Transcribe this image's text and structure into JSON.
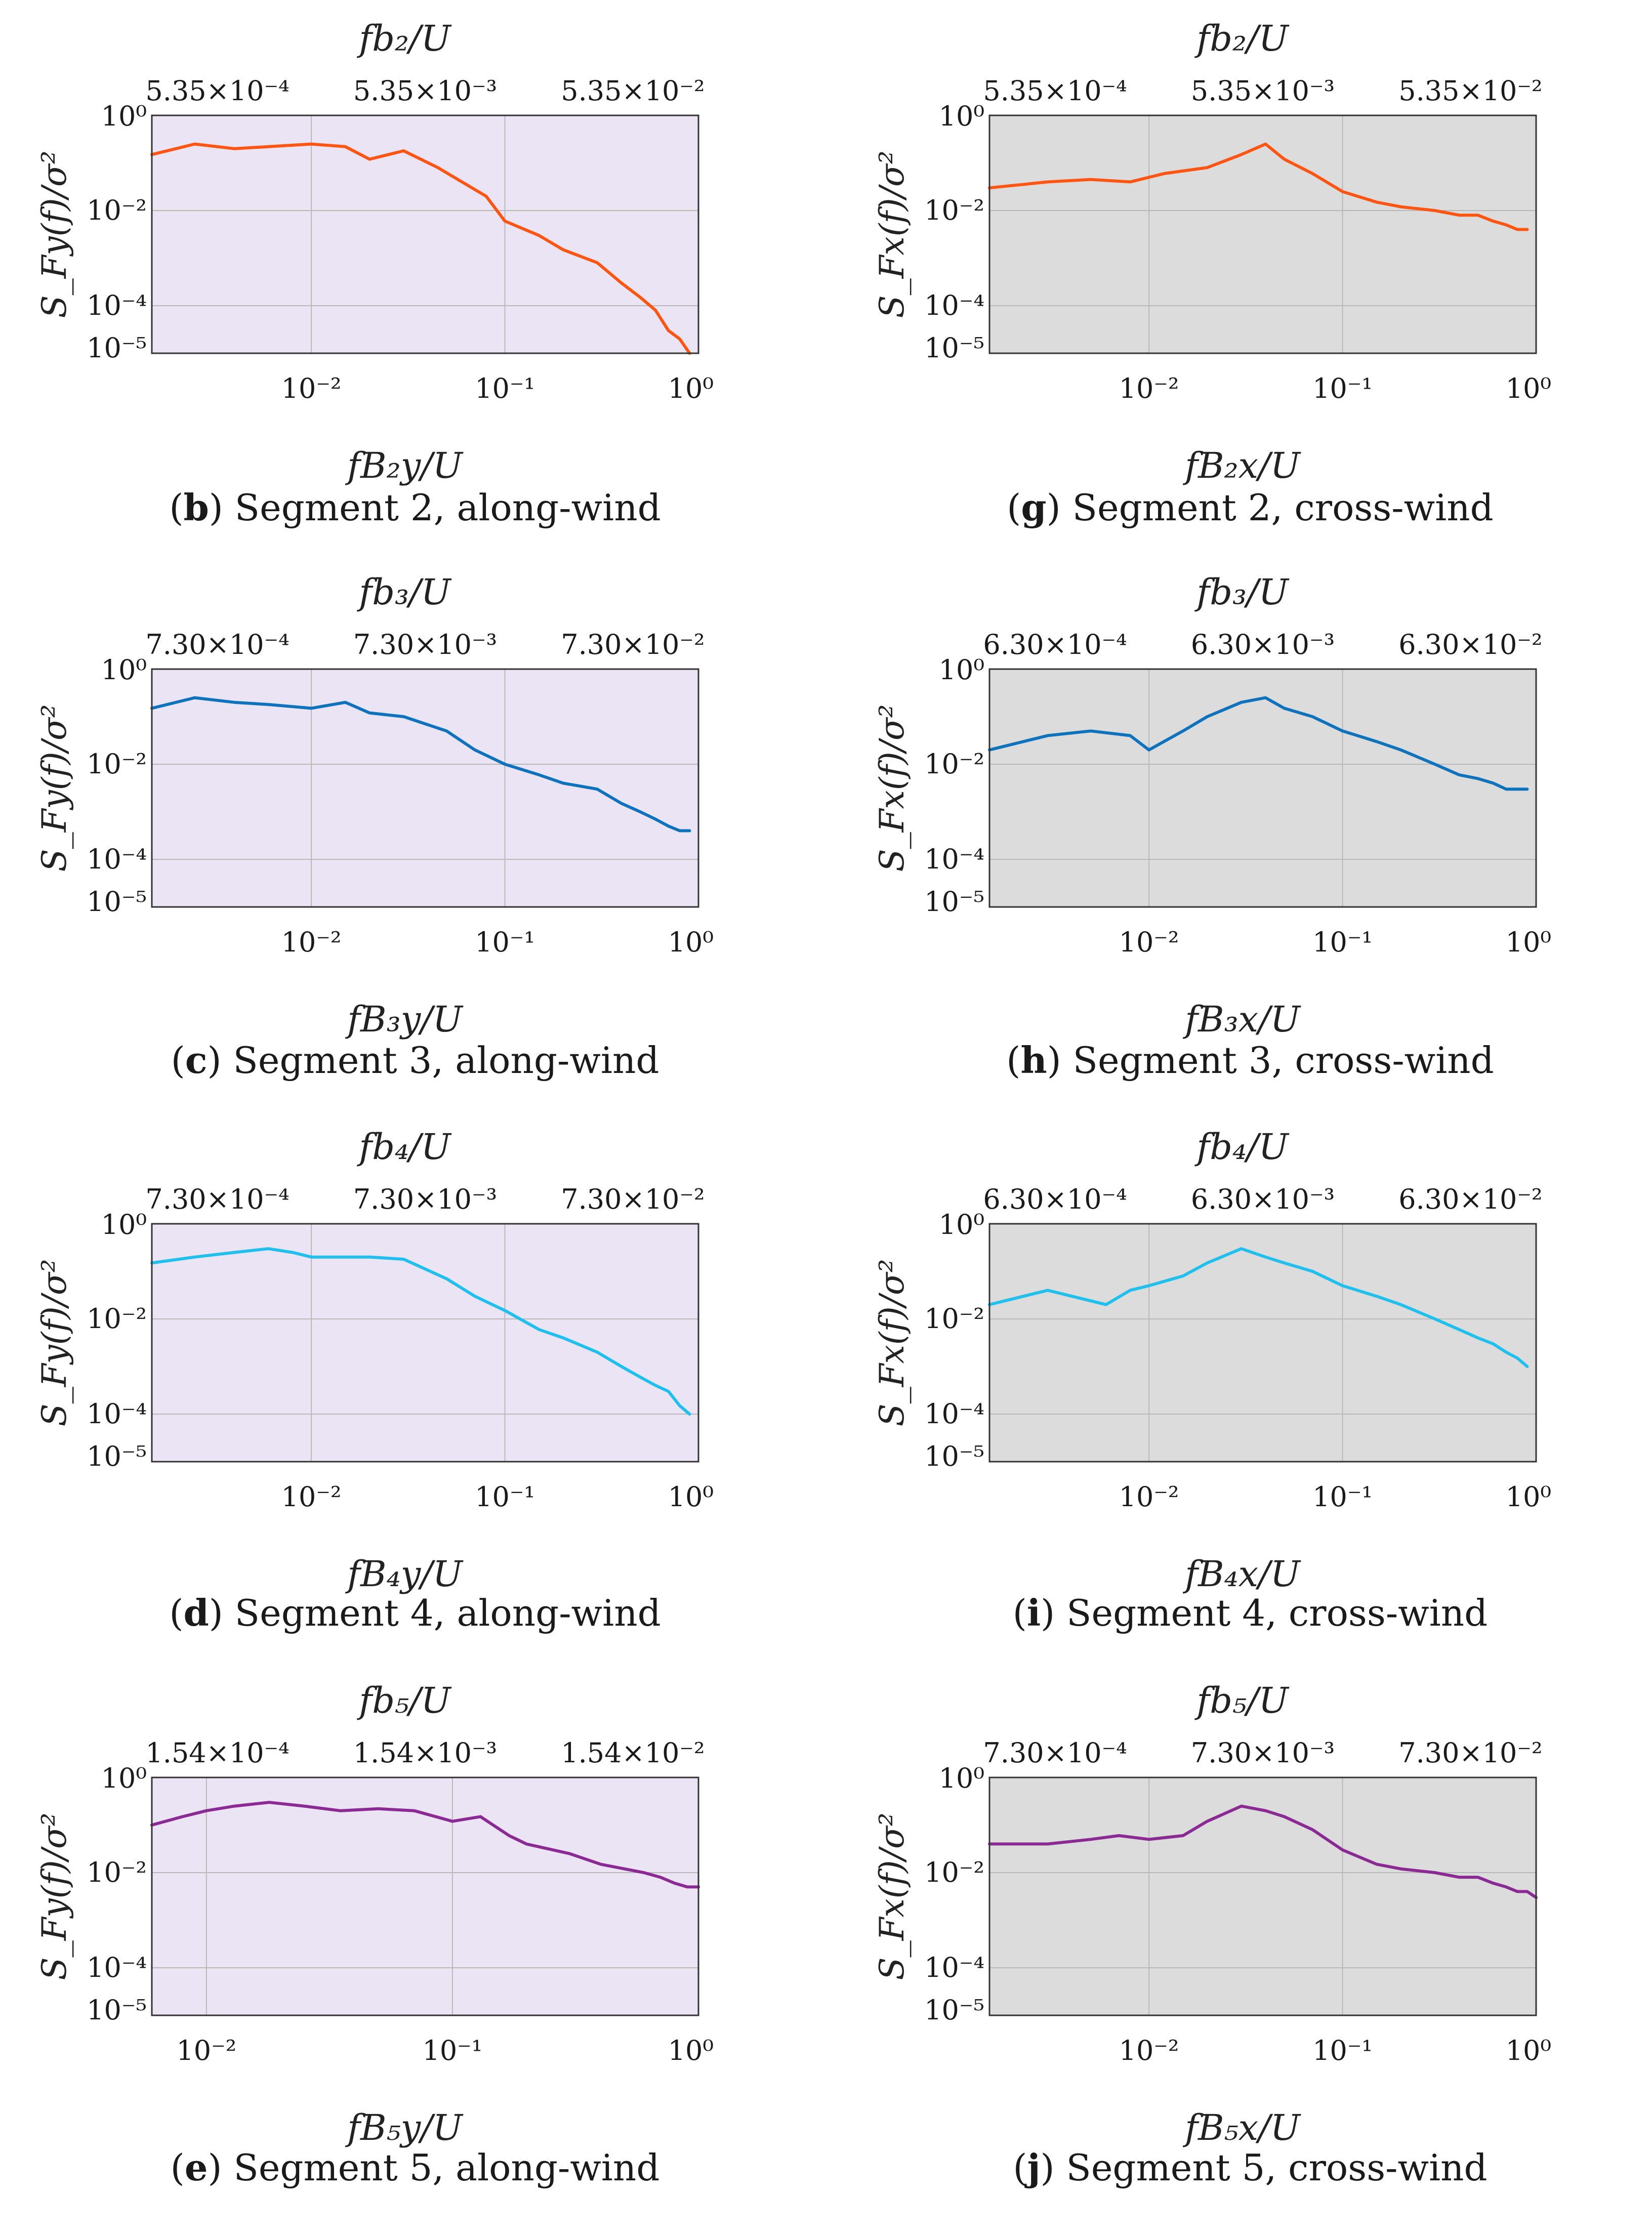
{
  "chart_data": [
    {
      "type": "line",
      "panel_letter": "b",
      "caption": "Segment 2, along-wind",
      "top_axis_title": "fb₂/U",
      "top_tick_labels": [
        "5.35×10⁻⁴",
        "5.35×10⁻³",
        "5.35×10⁻²"
      ],
      "xlabel": "fB₂y/U",
      "ylabel": "S_Fy(f)/σ²",
      "x_tick_labels": [
        "10⁻²",
        "10⁻¹",
        "10⁰"
      ],
      "y_tick_labels": [
        "10⁰",
        "10⁻²",
        "10⁻⁴",
        "10⁻⁵"
      ],
      "xlim": [
        0.0015,
        1.0
      ],
      "ylim": [
        1e-05,
        1.0
      ],
      "background": "#ebe4f4",
      "series": [
        {
          "name": "Segment 2 along-wind",
          "color": "#ff5512",
          "x": [
            0.0015,
            0.0025,
            0.004,
            0.006,
            0.01,
            0.015,
            0.02,
            0.03,
            0.045,
            0.06,
            0.08,
            0.1,
            0.15,
            0.2,
            0.3,
            0.4,
            0.5,
            0.6,
            0.7,
            0.8,
            0.9
          ],
          "y": [
            0.15,
            0.25,
            0.2,
            0.22,
            0.25,
            0.22,
            0.12,
            0.18,
            0.08,
            0.04,
            0.02,
            0.006,
            0.003,
            0.0015,
            0.0008,
            0.0003,
            0.00015,
            8e-05,
            3e-05,
            2e-05,
            1e-05
          ]
        }
      ]
    },
    {
      "type": "line",
      "panel_letter": "g",
      "caption": "Segment 2, cross-wind",
      "top_axis_title": "fb₂/U",
      "top_tick_labels": [
        "5.35×10⁻⁴",
        "5.35×10⁻³",
        "5.35×10⁻²"
      ],
      "xlabel": "fB₂x/U",
      "ylabel": "S_Fx(f)/σ²",
      "x_tick_labels": [
        "10⁻²",
        "10⁻¹",
        "10⁰"
      ],
      "y_tick_labels": [
        "10⁰",
        "10⁻²",
        "10⁻⁴",
        "10⁻⁵"
      ],
      "xlim": [
        0.0015,
        1.0
      ],
      "ylim": [
        1e-05,
        1.0
      ],
      "background": "#dcdcdc",
      "series": [
        {
          "name": "Segment 2 cross-wind",
          "color": "#ff5512",
          "x": [
            0.0015,
            0.003,
            0.005,
            0.008,
            0.012,
            0.02,
            0.03,
            0.04,
            0.05,
            0.07,
            0.1,
            0.15,
            0.2,
            0.3,
            0.4,
            0.5,
            0.6,
            0.7,
            0.8,
            0.9
          ],
          "y": [
            0.03,
            0.04,
            0.045,
            0.04,
            0.06,
            0.08,
            0.15,
            0.25,
            0.12,
            0.06,
            0.025,
            0.015,
            0.012,
            0.01,
            0.008,
            0.008,
            0.006,
            0.005,
            0.004,
            0.004
          ]
        }
      ]
    },
    {
      "type": "line",
      "panel_letter": "c",
      "caption": "Segment 3, along-wind",
      "top_axis_title": "fb₃/U",
      "top_tick_labels": [
        "7.30×10⁻⁴",
        "7.30×10⁻³",
        "7.30×10⁻²"
      ],
      "xlabel": "fB₃y/U",
      "ylabel": "S_Fy(f)/σ²",
      "x_tick_labels": [
        "10⁻²",
        "10⁻¹",
        "10⁰"
      ],
      "y_tick_labels": [
        "10⁰",
        "10⁻²",
        "10⁻⁴",
        "10⁻⁵"
      ],
      "xlim": [
        0.0015,
        1.0
      ],
      "ylim": [
        1e-05,
        1.0
      ],
      "background": "#ebe4f4",
      "series": [
        {
          "name": "Segment 3 along-wind",
          "color": "#0f72bd",
          "x": [
            0.0015,
            0.0025,
            0.004,
            0.006,
            0.01,
            0.015,
            0.02,
            0.03,
            0.05,
            0.07,
            0.1,
            0.15,
            0.2,
            0.3,
            0.4,
            0.5,
            0.6,
            0.7,
            0.8,
            0.9
          ],
          "y": [
            0.15,
            0.25,
            0.2,
            0.18,
            0.15,
            0.2,
            0.12,
            0.1,
            0.05,
            0.02,
            0.01,
            0.006,
            0.004,
            0.003,
            0.0015,
            0.001,
            0.0007,
            0.0005,
            0.0004,
            0.0004
          ]
        }
      ]
    },
    {
      "type": "line",
      "panel_letter": "h",
      "caption": "Segment 3, cross-wind",
      "top_axis_title": "fb₃/U",
      "top_tick_labels": [
        "6.30×10⁻⁴",
        "6.30×10⁻³",
        "6.30×10⁻²"
      ],
      "xlabel": "fB₃x/U",
      "ylabel": "S_Fx(f)/σ²",
      "x_tick_labels": [
        "10⁻²",
        "10⁻¹",
        "10⁰"
      ],
      "y_tick_labels": [
        "10⁰",
        "10⁻²",
        "10⁻⁴",
        "10⁻⁵"
      ],
      "xlim": [
        0.0015,
        1.0
      ],
      "ylim": [
        1e-05,
        1.0
      ],
      "background": "#dcdcdc",
      "series": [
        {
          "name": "Segment 3 cross-wind",
          "color": "#0f72bd",
          "x": [
            0.0015,
            0.003,
            0.005,
            0.008,
            0.01,
            0.015,
            0.02,
            0.03,
            0.04,
            0.05,
            0.07,
            0.1,
            0.15,
            0.2,
            0.3,
            0.4,
            0.5,
            0.6,
            0.7,
            0.8,
            0.9
          ],
          "y": [
            0.02,
            0.04,
            0.05,
            0.04,
            0.02,
            0.05,
            0.1,
            0.2,
            0.25,
            0.15,
            0.1,
            0.05,
            0.03,
            0.02,
            0.01,
            0.006,
            0.005,
            0.004,
            0.003,
            0.003,
            0.003
          ]
        }
      ]
    },
    {
      "type": "line",
      "panel_letter": "d",
      "caption": "Segment 4, along-wind",
      "top_axis_title": "fb₄/U",
      "top_tick_labels": [
        "7.30×10⁻⁴",
        "7.30×10⁻³",
        "7.30×10⁻²"
      ],
      "xlabel": "fB₄y/U",
      "ylabel": "S_Fy(f)/σ²",
      "x_tick_labels": [
        "10⁻²",
        "10⁻¹",
        "10⁰"
      ],
      "y_tick_labels": [
        "10⁰",
        "10⁻²",
        "10⁻⁴",
        "10⁻⁵"
      ],
      "xlim": [
        0.0015,
        1.0
      ],
      "ylim": [
        1e-05,
        1.0
      ],
      "background": "#ebe4f4",
      "series": [
        {
          "name": "Segment 4 along-wind",
          "color": "#1fbfee",
          "x": [
            0.0015,
            0.0025,
            0.004,
            0.006,
            0.008,
            0.01,
            0.015,
            0.02,
            0.03,
            0.05,
            0.07,
            0.1,
            0.15,
            0.2,
            0.3,
            0.4,
            0.5,
            0.6,
            0.7,
            0.8,
            0.9
          ],
          "y": [
            0.15,
            0.2,
            0.25,
            0.3,
            0.25,
            0.2,
            0.2,
            0.2,
            0.18,
            0.07,
            0.03,
            0.015,
            0.006,
            0.004,
            0.002,
            0.001,
            0.0006,
            0.0004,
            0.0003,
            0.00015,
            0.0001
          ]
        }
      ]
    },
    {
      "type": "line",
      "panel_letter": "i",
      "caption": "Segment 4, cross-wind",
      "top_axis_title": "fb₄/U",
      "top_tick_labels": [
        "6.30×10⁻⁴",
        "6.30×10⁻³",
        "6.30×10⁻²"
      ],
      "xlabel": "fB₄x/U",
      "ylabel": "S_Fx(f)/σ²",
      "x_tick_labels": [
        "10⁻²",
        "10⁻¹",
        "10⁰"
      ],
      "y_tick_labels": [
        "10⁰",
        "10⁻²",
        "10⁻⁴",
        "10⁻⁵"
      ],
      "xlim": [
        0.0015,
        1.0
      ],
      "ylim": [
        1e-05,
        1.0
      ],
      "background": "#dcdcdc",
      "series": [
        {
          "name": "Segment 4 cross-wind",
          "color": "#1fbfee",
          "x": [
            0.0015,
            0.003,
            0.004,
            0.006,
            0.008,
            0.01,
            0.015,
            0.02,
            0.03,
            0.04,
            0.05,
            0.07,
            0.1,
            0.15,
            0.2,
            0.3,
            0.4,
            0.5,
            0.6,
            0.7,
            0.8,
            0.9
          ],
          "y": [
            0.02,
            0.04,
            0.03,
            0.02,
            0.04,
            0.05,
            0.08,
            0.15,
            0.3,
            0.2,
            0.15,
            0.1,
            0.05,
            0.03,
            0.02,
            0.01,
            0.006,
            0.004,
            0.003,
            0.002,
            0.0015,
            0.001
          ]
        }
      ]
    },
    {
      "type": "line",
      "panel_letter": "e",
      "caption": "Segment 5, along-wind",
      "top_axis_title": "fb₅/U",
      "top_tick_labels": [
        "1.54×10⁻⁴",
        "1.54×10⁻³",
        "1.54×10⁻²"
      ],
      "xlabel": "fB₅y/U",
      "ylabel": "S_Fy(f)/σ²",
      "x_tick_labels": [
        "10⁻²",
        "10⁻¹",
        "10⁰"
      ],
      "y_tick_labels": [
        "10⁰",
        "10⁻²",
        "10⁻⁴",
        "10⁻⁵"
      ],
      "xlim": [
        0.006,
        1.0
      ],
      "ylim": [
        1e-05,
        1.0
      ],
      "background": "#ebe4f4",
      "series": [
        {
          "name": "Segment 5 along-wind",
          "color": "#8b2a94",
          "x": [
            0.006,
            0.008,
            0.01,
            0.013,
            0.018,
            0.025,
            0.035,
            0.05,
            0.07,
            0.1,
            0.13,
            0.17,
            0.2,
            0.3,
            0.4,
            0.5,
            0.6,
            0.7,
            0.8,
            0.9,
            1.0
          ],
          "y": [
            0.1,
            0.15,
            0.2,
            0.25,
            0.3,
            0.25,
            0.2,
            0.22,
            0.2,
            0.12,
            0.15,
            0.06,
            0.04,
            0.025,
            0.015,
            0.012,
            0.01,
            0.008,
            0.006,
            0.005,
            0.005
          ]
        }
      ]
    },
    {
      "type": "line",
      "panel_letter": "j",
      "caption": "Segment 5, cross-wind",
      "top_axis_title": "fb₅/U",
      "top_tick_labels": [
        "7.30×10⁻⁴",
        "7.30×10⁻³",
        "7.30×10⁻²"
      ],
      "xlabel": "fB₅x/U",
      "ylabel": "S_Fx(f)/σ²",
      "x_tick_labels": [
        "10⁻²",
        "10⁻¹",
        "10⁰"
      ],
      "y_tick_labels": [
        "10⁰",
        "10⁻²",
        "10⁻⁴",
        "10⁻⁵"
      ],
      "xlim": [
        0.0015,
        1.0
      ],
      "ylim": [
        1e-05,
        1.0
      ],
      "background": "#dcdcdc",
      "series": [
        {
          "name": "Segment 5 cross-wind",
          "color": "#8b2a94",
          "x": [
            0.0015,
            0.003,
            0.005,
            0.007,
            0.01,
            0.015,
            0.02,
            0.03,
            0.04,
            0.05,
            0.07,
            0.1,
            0.15,
            0.2,
            0.3,
            0.4,
            0.5,
            0.6,
            0.7,
            0.8,
            0.9,
            1.0
          ],
          "y": [
            0.04,
            0.04,
            0.05,
            0.06,
            0.05,
            0.06,
            0.12,
            0.25,
            0.2,
            0.15,
            0.08,
            0.03,
            0.015,
            0.012,
            0.01,
            0.008,
            0.008,
            0.006,
            0.005,
            0.004,
            0.004,
            0.003
          ]
        }
      ]
    }
  ]
}
